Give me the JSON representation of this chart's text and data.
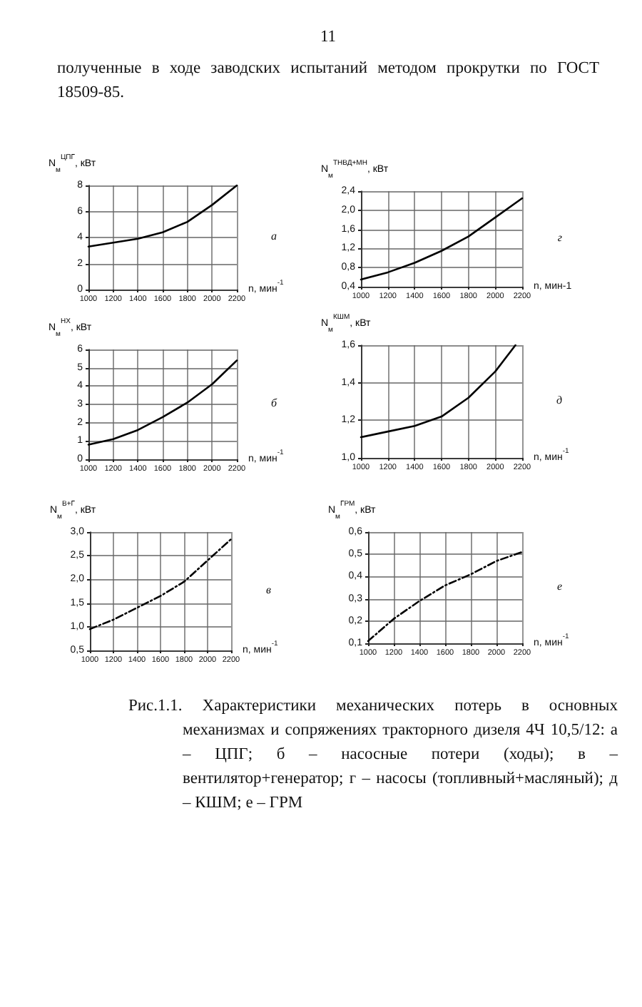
{
  "chart_data": [
    {
      "type": "other",
      "annotations": [
        "11",
        "полученные в ходе заводских испытаний методом прокрутки по ГОСТ 18509-85."
      ]
    },
    {
      "type": "line",
      "ylabel": "N$_{м}$$^{ЦПГ}$, кВт",
      "xlabel": "n, мин$^{-1}$",
      "xlim": [
        1000,
        2200
      ],
      "xticks": [
        1000,
        1200,
        1400,
        1600,
        1800,
        2000,
        2200
      ],
      "ylim": [
        0,
        8
      ],
      "yticks": [
        0,
        2,
        4,
        6,
        8
      ],
      "grid": true,
      "annotations": [
        "а"
      ],
      "series": [
        {
          "color": "#000000",
          "x": [
            1000,
            1200,
            1400,
            1600,
            1800,
            2000,
            2200
          ],
          "values": [
            3.3,
            3.6,
            3.9,
            4.4,
            5.2,
            6.5,
            8.0
          ]
        }
      ]
    },
    {
      "type": "line",
      "ylabel": "N$_{м}$$^{ТНВД+МН}$, кВт",
      "xlabel": "n, мин-1",
      "xlim": [
        1000,
        2200
      ],
      "xticks": [
        1000,
        1200,
        1400,
        1600,
        1800,
        2000,
        2200
      ],
      "ylim": [
        0.4,
        2.4
      ],
      "yticks": [
        {
          "value": 0.4,
          "label": "0,4"
        },
        {
          "value": 0.8,
          "label": "0,8"
        },
        {
          "value": 1.2,
          "label": "1,2"
        },
        {
          "value": 1.6,
          "label": "1,6"
        },
        {
          "value": 2.0,
          "label": "2,0"
        },
        {
          "value": 2.4,
          "label": "2,4"
        }
      ],
      "grid": true,
      "annotations": [
        "г"
      ],
      "series": [
        {
          "color": "#000000",
          "x": [
            1000,
            1200,
            1400,
            1600,
            1800,
            2000,
            2200
          ],
          "values": [
            0.55,
            0.7,
            0.9,
            1.15,
            1.45,
            1.85,
            2.25
          ]
        }
      ]
    },
    {
      "type": "line",
      "ylabel": "N$_{м}$$^{НХ}$, кВт",
      "xlabel": "n, мин$^{-1}$",
      "xlim": [
        1000,
        2200
      ],
      "xticks": [
        1000,
        1200,
        1400,
        1600,
        1800,
        2000,
        2200
      ],
      "ylim": [
        0,
        6
      ],
      "yticks": [
        0,
        1,
        2,
        3,
        4,
        5,
        6
      ],
      "grid": true,
      "annotations": [
        "б"
      ],
      "series": [
        {
          "color": "#000000",
          "x": [
            1000,
            1200,
            1400,
            1600,
            1800,
            2000,
            2200
          ],
          "values": [
            0.8,
            1.1,
            1.6,
            2.3,
            3.1,
            4.1,
            5.4
          ]
        }
      ]
    },
    {
      "type": "line",
      "ylabel": "N$_{м}$$^{КШМ}$, кВт",
      "xlabel": "n, мин$^{-1}$",
      "xlim": [
        1000,
        2200
      ],
      "xticks": [
        1000,
        1200,
        1400,
        1600,
        1800,
        2000,
        2200
      ],
      "ylim": [
        1.0,
        1.6
      ],
      "yticks": [
        {
          "value": 1.0,
          "label": "1,0"
        },
        {
          "value": 1.2,
          "label": "1,2"
        },
        {
          "value": 1.4,
          "label": "1,4"
        },
        {
          "value": 1.6,
          "label": "1,6"
        }
      ],
      "grid": true,
      "annotations": [
        "д"
      ],
      "series": [
        {
          "color": "#000000",
          "x": [
            1000,
            1200,
            1400,
            1600,
            1800,
            2000,
            2150
          ],
          "values": [
            1.11,
            1.14,
            1.17,
            1.22,
            1.32,
            1.46,
            1.6
          ]
        }
      ]
    },
    {
      "type": "line",
      "ylabel": "N$_{м}$$^{В+Г}$, кВт",
      "xlabel": "n, мин$^{-1}$",
      "xlim": [
        1000,
        2200
      ],
      "xticks": [
        1000,
        1200,
        1400,
        1600,
        1800,
        2000,
        2200
      ],
      "ylim": [
        0.5,
        3.0
      ],
      "yticks": [
        {
          "value": 0.5,
          "label": "0,5"
        },
        {
          "value": 1.0,
          "label": "1,0"
        },
        {
          "value": 1.5,
          "label": "1,5"
        },
        {
          "value": 2.0,
          "label": "2,0"
        },
        {
          "value": 2.5,
          "label": "2,5"
        },
        {
          "value": 3.0,
          "label": "3,0"
        }
      ],
      "grid": true,
      "line_style": "dashed",
      "annotations": [
        "в"
      ],
      "series": [
        {
          "color": "#000000",
          "x": [
            1000,
            1200,
            1400,
            1600,
            1800,
            2000,
            2200
          ],
          "values": [
            0.95,
            1.15,
            1.4,
            1.65,
            1.95,
            2.4,
            2.85
          ]
        }
      ]
    },
    {
      "type": "line",
      "ylabel": "N$_{м}$$^{ГРМ}$, кВт",
      "xlabel": "n, мин$^{-1}$",
      "xlim": [
        1000,
        2200
      ],
      "xticks": [
        1000,
        1200,
        1400,
        1600,
        1800,
        2000,
        2200
      ],
      "ylim": [
        0.1,
        0.6
      ],
      "yticks": [
        {
          "value": 0.1,
          "label": "0,1"
        },
        {
          "value": 0.2,
          "label": "0,2"
        },
        {
          "value": 0.3,
          "label": "0,3"
        },
        {
          "value": 0.4,
          "label": "0,4"
        },
        {
          "value": 0.5,
          "label": "0,5"
        },
        {
          "value": 0.6,
          "label": "0,6"
        }
      ],
      "grid": true,
      "line_style": "dashed",
      "annotations": [
        "е"
      ],
      "series": [
        {
          "color": "#000000",
          "x": [
            1000,
            1200,
            1400,
            1600,
            1800,
            2000,
            2200
          ],
          "values": [
            0.11,
            0.21,
            0.29,
            0.36,
            0.41,
            0.47,
            0.51
          ]
        }
      ]
    },
    {
      "type": "other",
      "annotations": [
        "Рис.1.1. Характеристики механических потерь в основных механизмах и сопряжениях тракторного дизеля 4Ч 10,5/12: а – ЦПГ; б – насосные потери (ходы); в – вентилятор+генератор; г – насосы (топливный+масляный); д – КШМ; е – ГРМ"
      ]
    }
  ]
}
